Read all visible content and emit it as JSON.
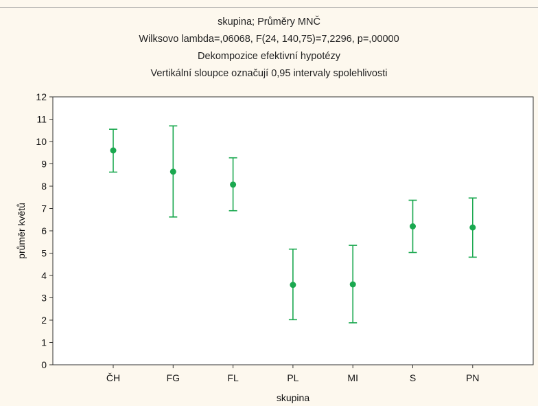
{
  "chart_data": {
    "type": "scatter",
    "title": "skupina; Průměry MNČ",
    "subtitle_lines": [
      "Wilksovo lambda=,06068, F(24, 140,75)=7,2296, p=,00000",
      "Dekompozice efektivní hypotézy",
      "Vertikální sloupce označují 0,95 intervaly spolehlivosti"
    ],
    "xlabel": "skupina",
    "ylabel": "průměr květů",
    "ylim": [
      0,
      12
    ],
    "yticks": [
      0,
      1,
      2,
      3,
      4,
      5,
      6,
      7,
      8,
      9,
      10,
      11,
      12
    ],
    "grid": false,
    "color": "#1aa84f",
    "categories": [
      "ČH",
      "FG",
      "FL",
      "PL",
      "MI",
      "S",
      "PN"
    ],
    "series": [
      {
        "values": [
          9.6,
          8.65,
          8.07,
          3.58,
          3.6,
          6.2,
          6.15
        ],
        "ci_lower": [
          8.63,
          6.62,
          6.9,
          2.02,
          1.88,
          5.03,
          4.82
        ],
        "ci_upper": [
          10.55,
          10.7,
          9.27,
          5.18,
          5.35,
          7.37,
          7.47
        ]
      }
    ]
  }
}
